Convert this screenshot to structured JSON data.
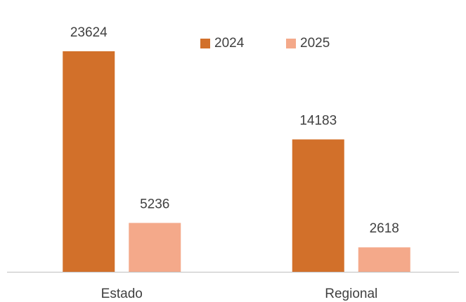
{
  "chart_data": {
    "type": "bar",
    "categories": [
      "Estado",
      "Regional"
    ],
    "series": [
      {
        "name": "2024",
        "color": "#d2702a",
        "values": [
          23624,
          14183
        ]
      },
      {
        "name": "2025",
        "color": "#f4a98a",
        "values": [
          5236,
          2618
        ]
      }
    ],
    "legend": "top"
  }
}
